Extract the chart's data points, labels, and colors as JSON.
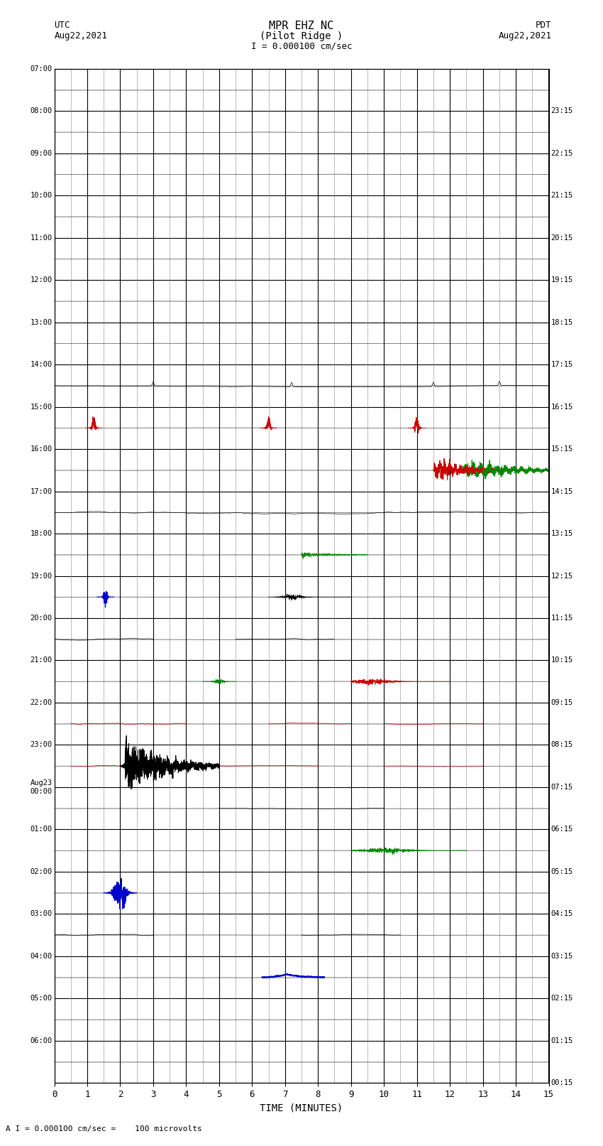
{
  "title_line1": "MPR EHZ NC",
  "title_line2": "(Pilot Ridge )",
  "scale_text": "I = 0.000100 cm/sec",
  "left_label": "UTC",
  "left_date": "Aug22,2021",
  "right_label": "PDT",
  "right_date": "Aug22,2021",
  "bottom_label": "TIME (MINUTES)",
  "footnote": "A I = 0.000100 cm/sec =    100 microvolts",
  "fig_width": 8.5,
  "fig_height": 16.13,
  "dpi": 100,
  "x_min": 0,
  "x_max": 15,
  "num_rows": 24,
  "background_color": "#ffffff",
  "grid_color_major": "#000000",
  "grid_color_minor": "#888888",
  "utc_times": [
    "07:00",
    "08:00",
    "09:00",
    "10:00",
    "11:00",
    "12:00",
    "13:00",
    "14:00",
    "15:00",
    "16:00",
    "17:00",
    "18:00",
    "19:00",
    "20:00",
    "21:00",
    "22:00",
    "23:00",
    "Aug23\n00:00",
    "01:00",
    "02:00",
    "03:00",
    "04:00",
    "05:00",
    "06:00"
  ],
  "pdt_times": [
    "00:15",
    "01:15",
    "02:15",
    "03:15",
    "04:15",
    "05:15",
    "06:15",
    "07:15",
    "08:15",
    "09:15",
    "10:15",
    "11:15",
    "12:15",
    "13:15",
    "14:15",
    "15:15",
    "16:15",
    "17:15",
    "18:15",
    "19:15",
    "20:15",
    "21:15",
    "22:15",
    "23:15"
  ]
}
